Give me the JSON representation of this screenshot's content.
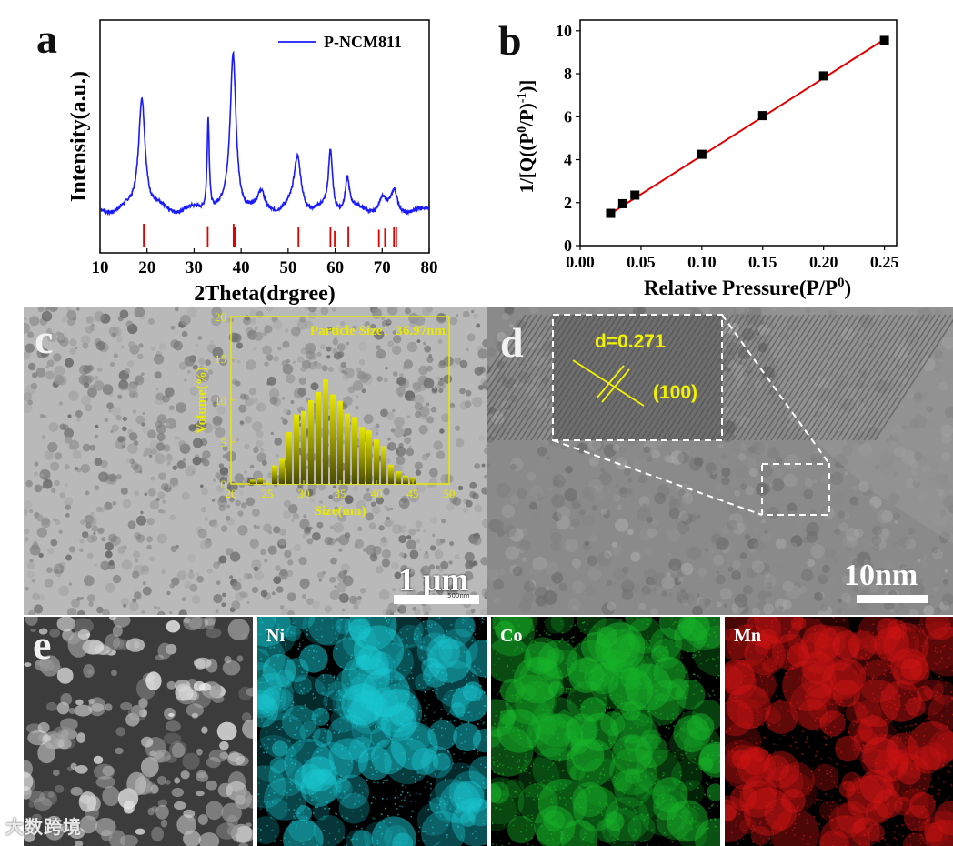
{
  "panels": {
    "a": "a",
    "b": "b",
    "c": "c",
    "d": "d",
    "e": "e"
  },
  "chart_data": [
    {
      "id": "a",
      "type": "line",
      "xlabel": "2Theta(drgree)",
      "ylabel": "Intensity(a.u.)",
      "xlim": [
        10,
        80
      ],
      "xticks": [
        "10",
        "20",
        "30",
        "40",
        "50",
        "60",
        "70",
        "80"
      ],
      "legend": {
        "position": "top-right",
        "label": "P-NCM811"
      },
      "series_color": "#1a1aff",
      "reference_color": "#e00000",
      "peaks": [
        {
          "x": 18.9,
          "height": 0.74,
          "width": 0.85
        },
        {
          "x": 33.0,
          "height": 0.6,
          "width": 0.28
        },
        {
          "x": 38.3,
          "height": 1.0,
          "width": 0.75
        },
        {
          "x": 44.3,
          "height": 0.1,
          "width": 0.8
        },
        {
          "x": 52.0,
          "height": 0.34,
          "width": 0.9
        },
        {
          "x": 59.0,
          "height": 0.38,
          "width": 0.5
        },
        {
          "x": 62.6,
          "height": 0.21,
          "width": 0.55
        },
        {
          "x": 70.0,
          "height": 0.08,
          "width": 0.9
        },
        {
          "x": 72.6,
          "height": 0.12,
          "width": 0.7
        }
      ],
      "reference_lines": [
        {
          "x": 19.3,
          "h": 1.0
        },
        {
          "x": 32.9,
          "h": 0.9
        },
        {
          "x": 38.4,
          "h": 1.0
        },
        {
          "x": 38.7,
          "h": 0.85
        },
        {
          "x": 52.2,
          "h": 0.85
        },
        {
          "x": 59.0,
          "h": 0.85
        },
        {
          "x": 59.9,
          "h": 0.7
        },
        {
          "x": 62.8,
          "h": 0.9
        },
        {
          "x": 69.3,
          "h": 0.75
        },
        {
          "x": 70.6,
          "h": 0.8
        },
        {
          "x": 72.5,
          "h": 0.85
        },
        {
          "x": 73.0,
          "h": 0.85
        }
      ]
    },
    {
      "id": "b",
      "type": "scatter",
      "xlabel": "Relative Pressure(P/P",
      "xlabel_sup": "0",
      "xlabel_end": ")",
      "ylabel": "1/[Q((P",
      "ylabel_sup1": "0",
      "ylabel_mid": "/P)",
      "ylabel_sup2": "-1",
      "ylabel_end": ")]",
      "xlim": [
        0.0,
        0.26
      ],
      "ylim": [
        0,
        10.5
      ],
      "xticks": [
        0.0,
        0.05,
        0.1,
        0.15,
        0.2,
        0.25
      ],
      "xtick_labels": [
        "0.00",
        "0.05",
        "0.10",
        "0.15",
        "0.20",
        "0.25"
      ],
      "yticks": [
        0,
        2,
        4,
        6,
        8,
        10
      ],
      "ytick_labels": [
        "0",
        "2",
        "4",
        "6",
        "8",
        "10"
      ],
      "points": [
        {
          "x": 0.025,
          "y": 1.5
        },
        {
          "x": 0.035,
          "y": 1.95
        },
        {
          "x": 0.045,
          "y": 2.35
        },
        {
          "x": 0.1,
          "y": 4.25
        },
        {
          "x": 0.15,
          "y": 6.05
        },
        {
          "x": 0.2,
          "y": 7.9
        },
        {
          "x": 0.25,
          "y": 9.55
        }
      ],
      "fit_line": {
        "x1": 0.022,
        "y1": 1.38,
        "x2": 0.25,
        "y2": 9.6,
        "color": "#e00000"
      },
      "marker_color": "#000000"
    },
    {
      "id": "c-inset",
      "type": "bar",
      "title": "Particle Size：36.97nm",
      "xlabel": "Size(nm)",
      "ylabel": "Volume(%)",
      "xlim": [
        20,
        50
      ],
      "ylim": [
        0,
        20
      ],
      "xticks": [
        "20",
        "25",
        "30",
        "35",
        "40",
        "45",
        "50"
      ],
      "yticks": [
        "0",
        "5",
        "10",
        "15",
        "20"
      ],
      "categories": [
        23,
        24,
        26,
        27,
        28,
        29,
        30,
        31,
        32,
        33,
        34,
        35,
        36,
        37,
        38,
        39,
        40,
        41,
        42,
        43,
        44,
        45
      ],
      "values": [
        0.5,
        0.7,
        2.2,
        3.0,
        6.2,
        8.3,
        8.7,
        10.0,
        11.0,
        12.5,
        10.7,
        9.9,
        8.4,
        8.0,
        6.8,
        6.4,
        5.3,
        4.5,
        2.3,
        1.5,
        1.0,
        0.8
      ],
      "bar_color": "#e8e800",
      "frame_color": "#e8e800"
    }
  ],
  "panel_c": {
    "scalebar_label": "1 μm",
    "scalebar_small_label": "500nm"
  },
  "panel_d": {
    "inset_d_value": "d=0.271",
    "inset_plane": "(100)",
    "scalebar_label": "10nm"
  },
  "panel_e": {
    "maps": [
      {
        "label": "Ni",
        "color": "#19c8d2"
      },
      {
        "label": "Co",
        "color": "#17b52a"
      },
      {
        "label": "Mn",
        "color": "#d21414"
      }
    ]
  },
  "watermark": "大数跨境"
}
